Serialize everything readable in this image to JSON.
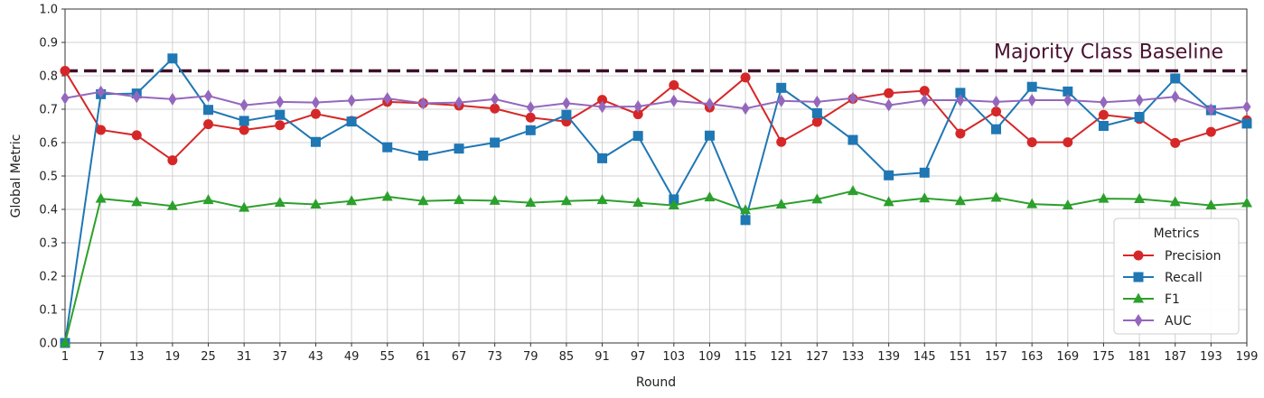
{
  "chart_data": {
    "type": "line",
    "xlabel": "Round",
    "ylabel": "Global Metric",
    "ylim": [
      0.0,
      1.0
    ],
    "xlim": [
      1,
      199
    ],
    "y_ticks": [
      "0.0",
      "0.1",
      "0.2",
      "0.3",
      "0.4",
      "0.5",
      "0.6",
      "0.7",
      "0.8",
      "0.9",
      "1.0"
    ],
    "x": [
      1,
      7,
      13,
      19,
      25,
      31,
      37,
      43,
      49,
      55,
      61,
      67,
      73,
      79,
      85,
      91,
      97,
      103,
      109,
      115,
      121,
      127,
      133,
      139,
      145,
      151,
      157,
      163,
      169,
      175,
      181,
      187,
      193,
      199
    ],
    "x_tick_labels": [
      "1",
      "7",
      "13",
      "19",
      "25",
      "31",
      "37",
      "43",
      "49",
      "55",
      "61",
      "67",
      "73",
      "79",
      "85",
      "91",
      "97",
      "103",
      "109",
      "115",
      "121",
      "127",
      "133",
      "139",
      "145",
      "151",
      "157",
      "163",
      "169",
      "175",
      "181",
      "187",
      "193",
      "199"
    ],
    "grid": true,
    "legend": {
      "title": "Metrics",
      "placement": "bottom-right"
    },
    "baseline": {
      "label": "Majority Class Baseline",
      "value": 0.815,
      "color": "#3d0f2a"
    },
    "series": [
      {
        "name": "Precision",
        "color": "#d62728",
        "marker": "circle",
        "values": [
          0.815,
          0.638,
          0.622,
          0.547,
          0.655,
          0.638,
          0.652,
          0.686,
          0.665,
          0.722,
          0.718,
          0.711,
          0.702,
          0.675,
          0.663,
          0.728,
          0.685,
          0.772,
          0.705,
          0.795,
          0.602,
          0.662,
          0.731,
          0.748,
          0.755,
          0.627,
          0.693,
          0.601,
          0.601,
          0.683,
          0.671,
          0.599,
          0.632,
          0.667
        ]
      },
      {
        "name": "Recall",
        "color": "#1f77b4",
        "marker": "square",
        "values": [
          0.0,
          0.745,
          0.747,
          0.852,
          0.698,
          0.665,
          0.683,
          0.602,
          0.663,
          0.586,
          0.561,
          0.582,
          0.6,
          0.637,
          0.683,
          0.553,
          0.62,
          0.43,
          0.621,
          0.368,
          0.764,
          0.688,
          0.608,
          0.502,
          0.51,
          0.749,
          0.64,
          0.767,
          0.753,
          0.65,
          0.677,
          0.792,
          0.697,
          0.657
        ]
      },
      {
        "name": "F1",
        "color": "#2ca02c",
        "marker": "triangle",
        "values": [
          0.0,
          0.432,
          0.422,
          0.41,
          0.428,
          0.405,
          0.42,
          0.415,
          0.425,
          0.438,
          0.425,
          0.428,
          0.426,
          0.42,
          0.425,
          0.428,
          0.42,
          0.412,
          0.436,
          0.398,
          0.415,
          0.43,
          0.455,
          0.422,
          0.433,
          0.425,
          0.435,
          0.416,
          0.412,
          0.432,
          0.431,
          0.422,
          0.412,
          0.419
        ]
      },
      {
        "name": "AUC",
        "color": "#9467bd",
        "marker": "diamond",
        "values": [
          0.733,
          0.752,
          0.737,
          0.73,
          0.74,
          0.712,
          0.722,
          0.72,
          0.726,
          0.732,
          0.718,
          0.72,
          0.73,
          0.705,
          0.718,
          0.707,
          0.708,
          0.725,
          0.716,
          0.702,
          0.725,
          0.722,
          0.733,
          0.712,
          0.727,
          0.727,
          0.722,
          0.727,
          0.727,
          0.721,
          0.727,
          0.737,
          0.699,
          0.707
        ]
      }
    ]
  }
}
